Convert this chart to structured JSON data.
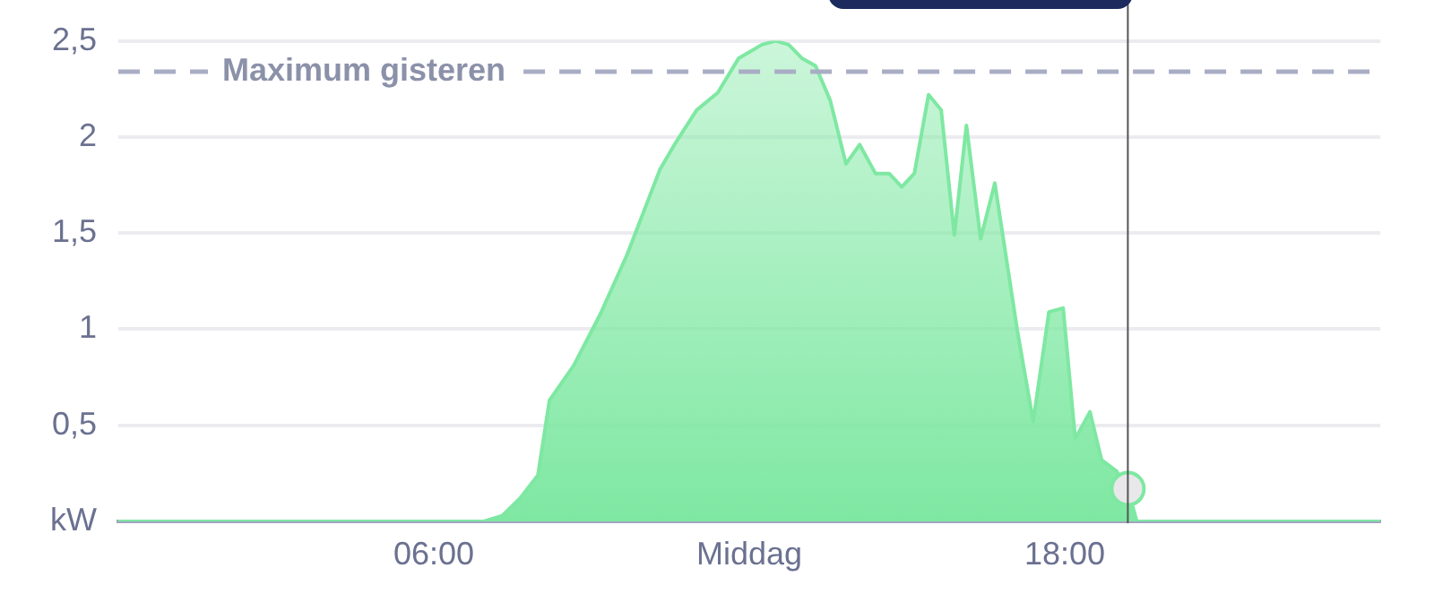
{
  "chart_data": {
    "type": "area",
    "x": [
      0,
      6.95,
      7.3,
      7.64,
      7.98,
      8.2,
      8.66,
      9.17,
      9.68,
      10.3,
      10.6,
      11.0,
      11.4,
      11.8,
      12.24,
      12.5,
      12.75,
      13.0,
      13.26,
      13.54,
      13.84,
      14.1,
      14.4,
      14.66,
      14.9,
      15.14,
      15.41,
      15.65,
      15.9,
      16.13,
      16.4,
      16.67,
      17.1,
      17.4,
      17.7,
      17.97,
      18.2,
      18.48,
      18.7,
      18.99,
      19.2,
      19.37,
      24
    ],
    "series": [
      {
        "color": "#7ee8a2",
        "values": [
          0,
          0,
          0.03,
          0.12,
          0.24,
          0.63,
          0.81,
          1.08,
          1.39,
          1.83,
          1.97,
          2.14,
          2.23,
          2.41,
          2.48,
          2.5,
          2.48,
          2.41,
          2.37,
          2.19,
          1.86,
          1.96,
          1.81,
          1.81,
          1.74,
          1.81,
          2.22,
          2.14,
          1.49,
          2.06,
          1.47,
          1.76,
          0.99,
          0.52,
          1.09,
          1.11,
          0.43,
          0.57,
          0.32,
          0.26,
          0.17,
          0,
          0
        ]
      },
      {
        "type": "scatter",
        "color": "#e8e8ea",
        "x": [
          19.2
        ],
        "values": [
          0.17
        ],
        "marker": "circle"
      }
    ],
    "xlim": [
      0,
      24
    ],
    "xticks": [
      {
        "value": 6,
        "label": "06:00"
      },
      {
        "value": 12,
        "label": "Middag"
      },
      {
        "value": 18,
        "label": "18:00"
      }
    ],
    "ylim": [
      0,
      2.5
    ],
    "yticks": [
      {
        "value": 0,
        "label": "kW"
      },
      {
        "value": 0.5,
        "label": "0,5"
      },
      1,
      {
        "value": 1.5,
        "label": "1,5"
      },
      2,
      {
        "value": 2.5,
        "label": "2,5"
      }
    ],
    "grid": "y",
    "legend": false,
    "marker": "none",
    "ref_lines": [
      {
        "axis": "y",
        "value": 2.34,
        "label": "Maximum gisteren",
        "color": "#a9adc4",
        "line_style": "dashed"
      },
      {
        "axis": "x",
        "value": 19.2,
        "color": "#555555",
        "line_style": "solid"
      }
    ]
  }
}
